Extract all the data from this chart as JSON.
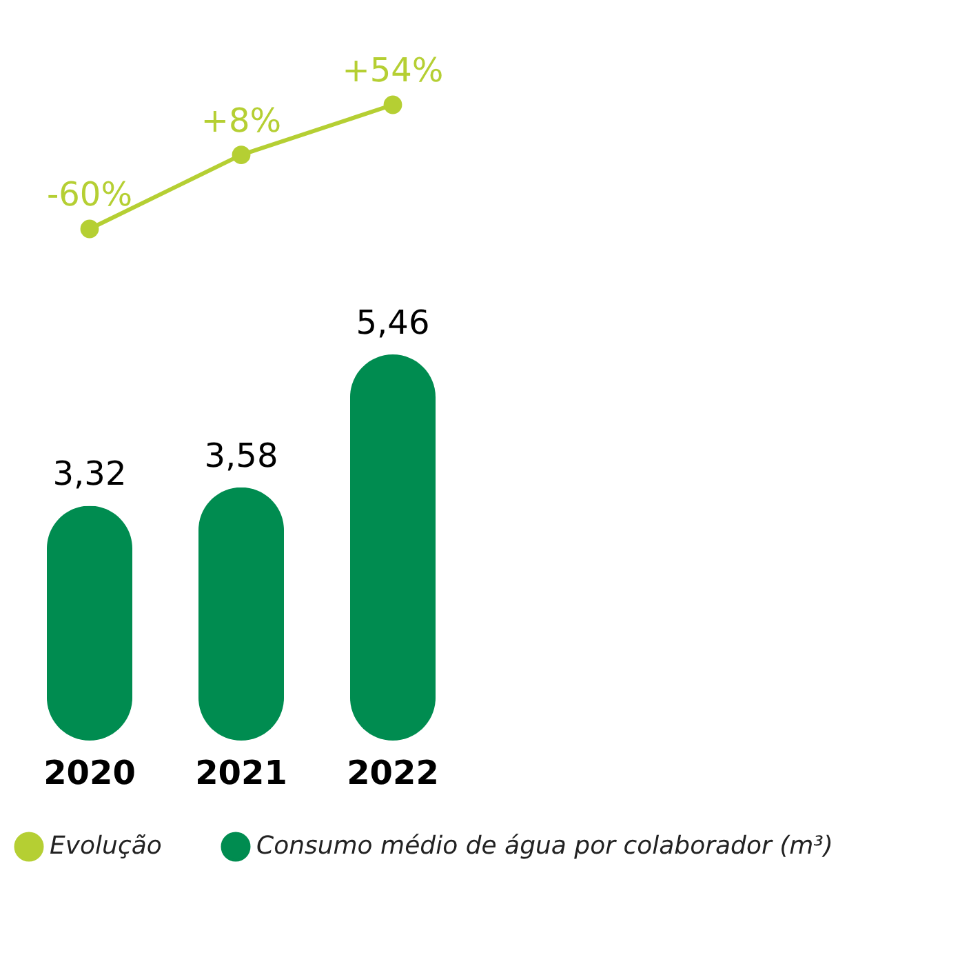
{
  "chart_data": [
    {
      "type": "line",
      "categories": [
        "2020",
        "2021",
        "2022"
      ],
      "tick_labels": false,
      "legend": "bottom",
      "series": [
        {
          "name": "Evolução",
          "color": "#b5cf33",
          "marker": "circle",
          "values": [
            -60,
            8,
            54
          ],
          "value_labels": [
            "-60%",
            "+8%",
            "+54%"
          ]
        }
      ]
    },
    {
      "type": "bar",
      "categories": [
        "2020",
        "2021",
        "2022"
      ],
      "legend": "bottom",
      "series": [
        {
          "name": "Consumo médio de água por colaborador (m³)",
          "color": "#008c50",
          "values": [
            3.32,
            3.58,
            5.46
          ],
          "value_labels": [
            "3,32",
            "3,58",
            "5,46"
          ]
        }
      ]
    }
  ]
}
